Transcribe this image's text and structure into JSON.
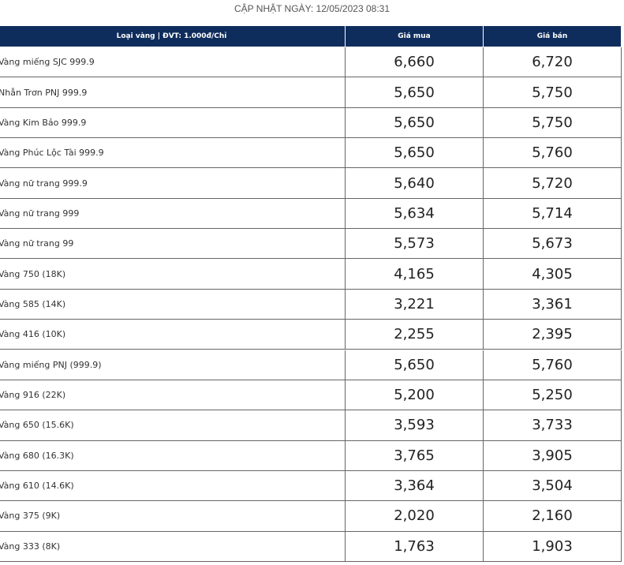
{
  "header": {
    "title": "CẬP NHẬT NGÀY: 12/05/2023 08:31"
  },
  "table": {
    "columns": [
      "Loại vàng | ĐVT: 1.000đ/Chỉ",
      "Giá mua",
      "Giá bán"
    ],
    "rows": [
      [
        "Vàng miếng SJC 999.9",
        "6,660",
        "6,720"
      ],
      [
        "Nhẫn Trơn PNJ 999.9",
        "5,650",
        "5,750"
      ],
      [
        "Vàng Kim Bảo 999.9",
        "5,650",
        "5,750"
      ],
      [
        "Vàng Phúc Lộc Tài 999.9",
        "5,650",
        "5,760"
      ],
      [
        "Vàng nữ trang 999.9",
        "5,640",
        "5,720"
      ],
      [
        "Vàng nữ trang 999",
        "5,634",
        "5,714"
      ],
      [
        "Vàng nữ trang 99",
        "5,573",
        "5,673"
      ],
      [
        "Vàng 750 (18K)",
        "4,165",
        "4,305"
      ],
      [
        "Vàng 585 (14K)",
        "3,221",
        "3,361"
      ],
      [
        "Vàng 416 (10K)",
        "2,255",
        "2,395"
      ],
      [
        "Vàng miếng PNJ (999.9)",
        "5,650",
        "5,760"
      ],
      [
        "Vàng 916 (22K)",
        "5,200",
        "5,250"
      ],
      [
        "Vàng 650 (15.6K)",
        "3,593",
        "3,733"
      ],
      [
        "Vàng 680 (16.3K)",
        "3,765",
        "3,905"
      ],
      [
        "Vàng 610 (14.6K)",
        "3,364",
        "3,504"
      ],
      [
        "Vàng 375 (9K)",
        "2,020",
        "2,160"
      ],
      [
        "Vàng 333 (8K)",
        "1,763",
        "1,903"
      ]
    ]
  }
}
